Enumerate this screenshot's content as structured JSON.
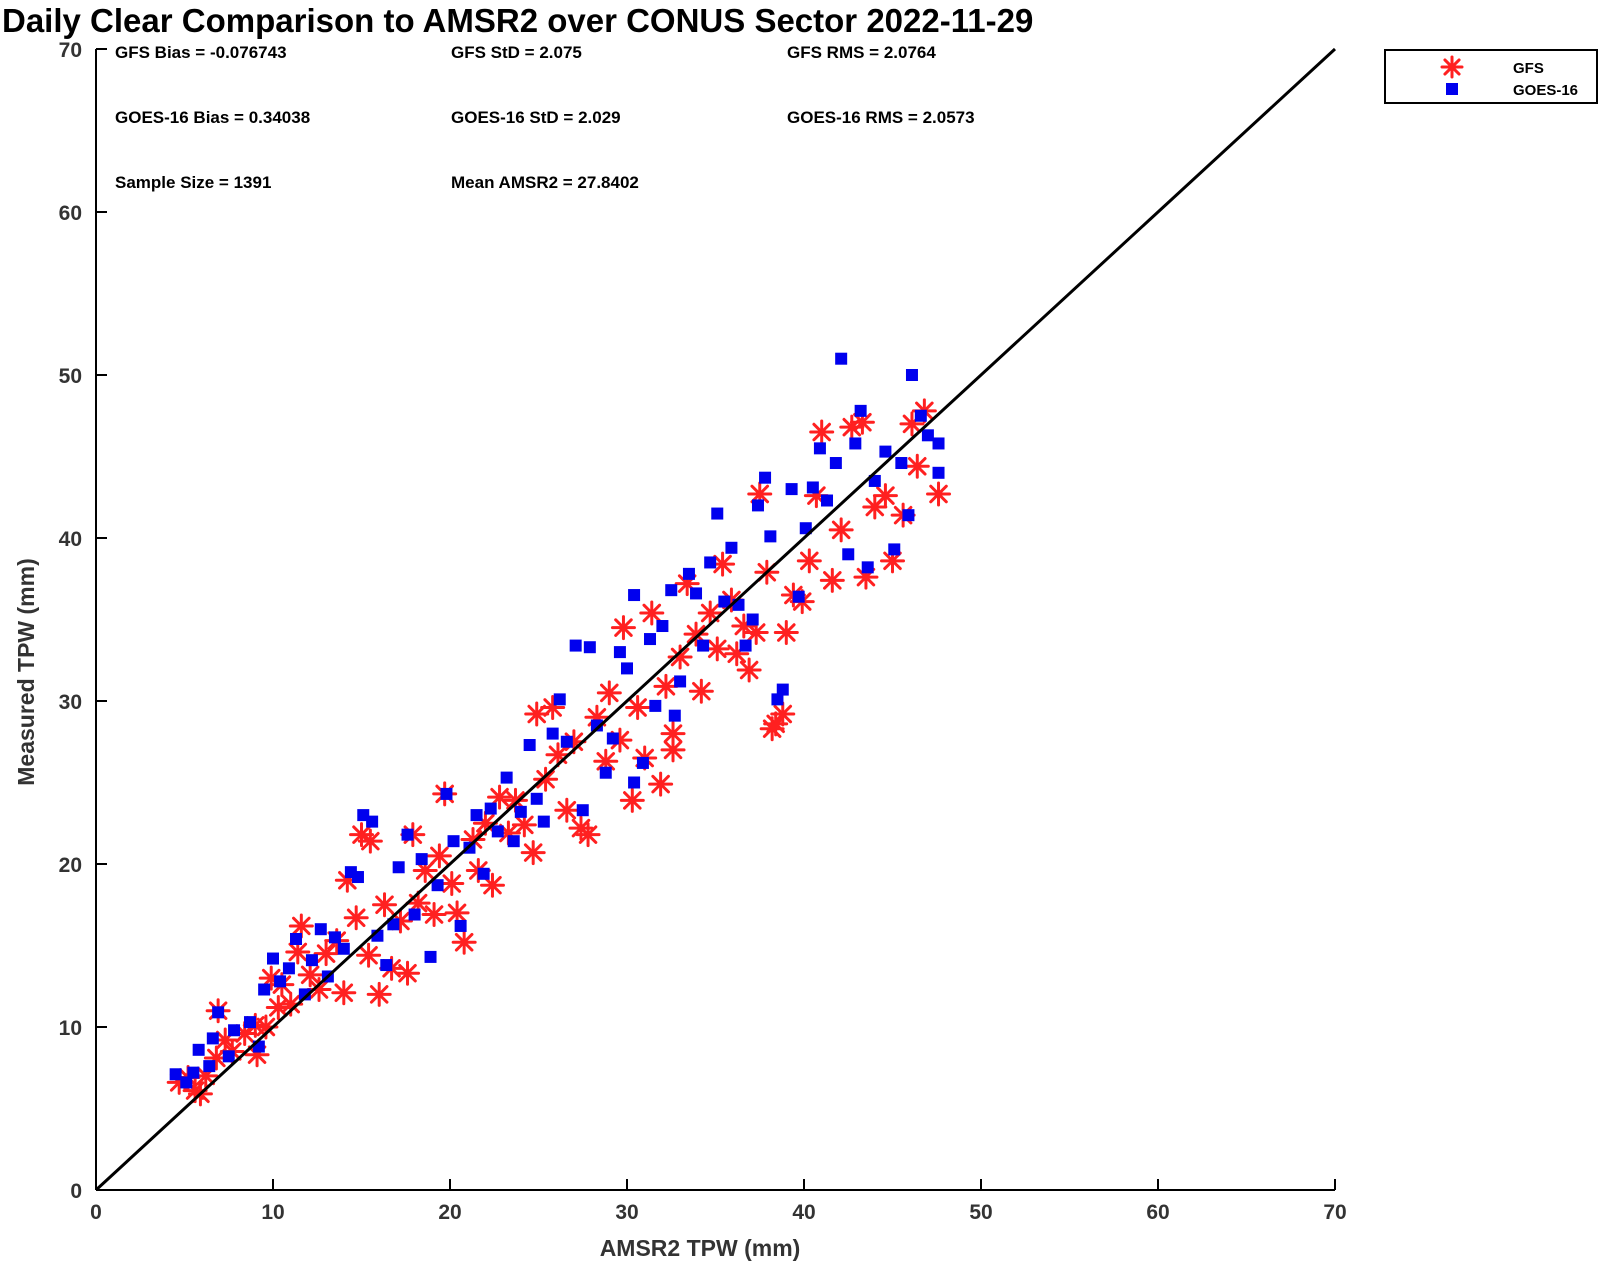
{
  "chart_data": {
    "type": "scatter",
    "title": "Daily Clear Comparison to AMSR2 over CONUS Sector 2022-11-29",
    "xlabel": "AMSR2 TPW (mm)",
    "ylabel": "Measured TPW (mm)",
    "xlim": [
      0,
      70
    ],
    "ylim": [
      0,
      70
    ],
    "xticks": [
      "0",
      "10",
      "20",
      "30",
      "40",
      "50",
      "60",
      "70"
    ],
    "yticks": [
      "0",
      "10",
      "20",
      "30",
      "40",
      "50",
      "60",
      "70"
    ],
    "grid": false,
    "legend_position": "top-right (outside plot)",
    "reference_line": {
      "type": "one-to-one",
      "from": [
        0,
        0
      ],
      "to": [
        70,
        70
      ]
    },
    "stats": {
      "gfs_bias": "GFS Bias = -0.076743",
      "gfs_std": "GFS StD = 2.075",
      "gfs_rms": "GFS RMS = 2.0764",
      "goes_bias": "GOES-16 Bias = 0.34038",
      "goes_std": "GOES-16 StD = 2.029",
      "goes_rms": "GOES-16 RMS = 2.0573",
      "sample_size": "Sample Size = 1391",
      "mean_amsr2": "Mean AMSR2 = 27.8402"
    },
    "series": [
      {
        "name": "GFS",
        "marker": "asterisk",
        "color": "#ff2020",
        "points": [
          [
            4.7,
            6.6
          ],
          [
            5.2,
            6.9
          ],
          [
            5.6,
            6.1
          ],
          [
            5.9,
            5.9
          ],
          [
            6.2,
            7.0
          ],
          [
            6.8,
            8.1
          ],
          [
            6.9,
            11.0
          ],
          [
            7.3,
            9.2
          ],
          [
            7.7,
            8.5
          ],
          [
            8.4,
            9.6
          ],
          [
            9.1,
            8.3
          ],
          [
            9.0,
            10.1
          ],
          [
            9.6,
            10.0
          ],
          [
            9.9,
            13.0
          ],
          [
            10.3,
            11.2
          ],
          [
            10.5,
            12.6
          ],
          [
            11.0,
            11.4
          ],
          [
            11.4,
            14.6
          ],
          [
            11.6,
            16.2
          ],
          [
            12.1,
            13.2
          ],
          [
            12.6,
            12.3
          ],
          [
            13.0,
            14.5
          ],
          [
            13.6,
            15.3
          ],
          [
            14.0,
            12.1
          ],
          [
            14.2,
            19.0
          ],
          [
            14.7,
            16.7
          ],
          [
            15.0,
            21.8
          ],
          [
            15.5,
            21.4
          ],
          [
            15.4,
            14.4
          ],
          [
            16.0,
            12.0
          ],
          [
            16.3,
            17.5
          ],
          [
            16.7,
            13.6
          ],
          [
            17.2,
            16.5
          ],
          [
            17.6,
            13.3
          ],
          [
            17.9,
            21.8
          ],
          [
            18.2,
            17.6
          ],
          [
            18.6,
            19.6
          ],
          [
            19.1,
            16.9
          ],
          [
            19.4,
            20.5
          ],
          [
            19.7,
            24.3
          ],
          [
            20.1,
            18.8
          ],
          [
            20.4,
            17.0
          ],
          [
            20.8,
            15.2
          ],
          [
            21.3,
            21.5
          ],
          [
            21.6,
            19.6
          ],
          [
            22.0,
            22.5
          ],
          [
            22.4,
            18.7
          ],
          [
            22.8,
            24.1
          ],
          [
            23.3,
            21.9
          ],
          [
            23.7,
            23.9
          ],
          [
            24.2,
            22.4
          ],
          [
            24.7,
            20.7
          ],
          [
            24.9,
            29.2
          ],
          [
            25.4,
            25.2
          ],
          [
            25.8,
            29.6
          ],
          [
            26.1,
            26.7
          ],
          [
            26.6,
            23.3
          ],
          [
            27.0,
            27.5
          ],
          [
            27.4,
            22.2
          ],
          [
            27.8,
            21.8
          ],
          [
            28.3,
            29.0
          ],
          [
            28.8,
            26.3
          ],
          [
            29.0,
            30.5
          ],
          [
            29.6,
            27.6
          ],
          [
            29.8,
            34.5
          ],
          [
            30.3,
            23.9
          ],
          [
            30.6,
            29.6
          ],
          [
            31.0,
            26.5
          ],
          [
            31.4,
            35.4
          ],
          [
            31.9,
            24.9
          ],
          [
            32.2,
            30.9
          ],
          [
            32.6,
            28.0
          ],
          [
            32.6,
            27.0
          ],
          [
            33.0,
            32.7
          ],
          [
            33.4,
            37.2
          ],
          [
            33.9,
            34.1
          ],
          [
            34.2,
            30.6
          ],
          [
            34.7,
            35.4
          ],
          [
            35.1,
            33.2
          ],
          [
            35.4,
            38.4
          ],
          [
            35.9,
            36.2
          ],
          [
            36.2,
            32.9
          ],
          [
            36.6,
            34.6
          ],
          [
            36.9,
            31.9
          ],
          [
            37.3,
            34.2
          ],
          [
            37.5,
            42.7
          ],
          [
            37.9,
            37.9
          ],
          [
            38.2,
            28.3
          ],
          [
            38.4,
            28.6
          ],
          [
            38.8,
            29.2
          ],
          [
            39.0,
            34.2
          ],
          [
            39.4,
            36.5
          ],
          [
            39.9,
            36.1
          ],
          [
            40.3,
            38.6
          ],
          [
            40.7,
            42.6
          ],
          [
            41.0,
            46.5
          ],
          [
            41.6,
            37.4
          ],
          [
            42.1,
            40.5
          ],
          [
            42.7,
            46.8
          ],
          [
            43.3,
            47.1
          ],
          [
            43.5,
            37.6
          ],
          [
            44.0,
            41.9
          ],
          [
            44.6,
            42.6
          ],
          [
            45.0,
            38.6
          ],
          [
            45.6,
            41.4
          ],
          [
            46.1,
            47.0
          ],
          [
            46.4,
            44.4
          ],
          [
            46.8,
            47.8
          ],
          [
            47.6,
            42.7
          ]
        ]
      },
      {
        "name": "GOES-16",
        "marker": "square",
        "color": "#0000ee",
        "points": [
          [
            4.5,
            7.1
          ],
          [
            5.1,
            6.6
          ],
          [
            5.5,
            7.2
          ],
          [
            5.8,
            8.6
          ],
          [
            6.4,
            7.6
          ],
          [
            6.6,
            9.3
          ],
          [
            6.9,
            10.9
          ],
          [
            7.5,
            8.2
          ],
          [
            7.8,
            9.8
          ],
          [
            8.7,
            10.3
          ],
          [
            9.2,
            8.8
          ],
          [
            9.5,
            12.3
          ],
          [
            10.0,
            14.2
          ],
          [
            10.4,
            12.8
          ],
          [
            10.9,
            13.6
          ],
          [
            11.3,
            15.4
          ],
          [
            11.8,
            12.0
          ],
          [
            12.2,
            14.1
          ],
          [
            12.7,
            16.0
          ],
          [
            13.1,
            13.1
          ],
          [
            13.5,
            15.5
          ],
          [
            14.0,
            14.8
          ],
          [
            14.4,
            19.5
          ],
          [
            14.8,
            19.2
          ],
          [
            15.1,
            23.0
          ],
          [
            15.6,
            22.6
          ],
          [
            15.9,
            15.6
          ],
          [
            16.4,
            13.8
          ],
          [
            16.8,
            16.3
          ],
          [
            17.1,
            19.8
          ],
          [
            17.6,
            21.8
          ],
          [
            18.0,
            16.9
          ],
          [
            18.4,
            20.3
          ],
          [
            18.9,
            14.3
          ],
          [
            19.3,
            18.7
          ],
          [
            19.8,
            24.3
          ],
          [
            20.2,
            21.4
          ],
          [
            20.6,
            16.2
          ],
          [
            21.1,
            21.0
          ],
          [
            21.5,
            23.0
          ],
          [
            21.9,
            19.4
          ],
          [
            22.3,
            23.4
          ],
          [
            22.7,
            22.0
          ],
          [
            23.2,
            25.3
          ],
          [
            23.6,
            21.4
          ],
          [
            24.0,
            23.2
          ],
          [
            24.5,
            27.3
          ],
          [
            24.9,
            24.0
          ],
          [
            25.3,
            22.6
          ],
          [
            25.8,
            28.0
          ],
          [
            26.2,
            30.1
          ],
          [
            26.6,
            27.5
          ],
          [
            27.1,
            33.4
          ],
          [
            27.5,
            23.3
          ],
          [
            27.9,
            33.3
          ],
          [
            28.3,
            28.5
          ],
          [
            28.8,
            25.6
          ],
          [
            29.2,
            27.7
          ],
          [
            29.6,
            33.0
          ],
          [
            30.0,
            32.0
          ],
          [
            30.4,
            36.5
          ],
          [
            30.4,
            25.0
          ],
          [
            30.9,
            26.2
          ],
          [
            31.3,
            33.8
          ],
          [
            31.6,
            29.7
          ],
          [
            32.0,
            34.6
          ],
          [
            32.5,
            36.8
          ],
          [
            32.7,
            29.1
          ],
          [
            33.0,
            31.2
          ],
          [
            33.5,
            37.8
          ],
          [
            33.9,
            36.6
          ],
          [
            34.3,
            33.4
          ],
          [
            34.7,
            38.5
          ],
          [
            35.1,
            41.5
          ],
          [
            35.5,
            36.1
          ],
          [
            35.9,
            39.4
          ],
          [
            36.3,
            35.9
          ],
          [
            36.7,
            33.4
          ],
          [
            37.1,
            35.0
          ],
          [
            37.4,
            42.0
          ],
          [
            37.8,
            43.7
          ],
          [
            38.1,
            40.1
          ],
          [
            38.5,
            30.1
          ],
          [
            38.8,
            30.7
          ],
          [
            39.3,
            43.0
          ],
          [
            39.7,
            36.4
          ],
          [
            40.1,
            40.6
          ],
          [
            40.5,
            43.1
          ],
          [
            40.9,
            45.5
          ],
          [
            41.3,
            42.3
          ],
          [
            41.8,
            44.6
          ],
          [
            42.1,
            51.0
          ],
          [
            42.5,
            39.0
          ],
          [
            42.9,
            45.8
          ],
          [
            43.2,
            47.8
          ],
          [
            43.6,
            38.2
          ],
          [
            44.0,
            43.5
          ],
          [
            44.6,
            45.3
          ],
          [
            45.1,
            39.3
          ],
          [
            45.5,
            44.6
          ],
          [
            45.9,
            41.4
          ],
          [
            46.1,
            50.0
          ],
          [
            46.6,
            47.5
          ],
          [
            47.0,
            46.3
          ],
          [
            47.6,
            45.8
          ],
          [
            47.6,
            44.0
          ]
        ]
      }
    ]
  }
}
